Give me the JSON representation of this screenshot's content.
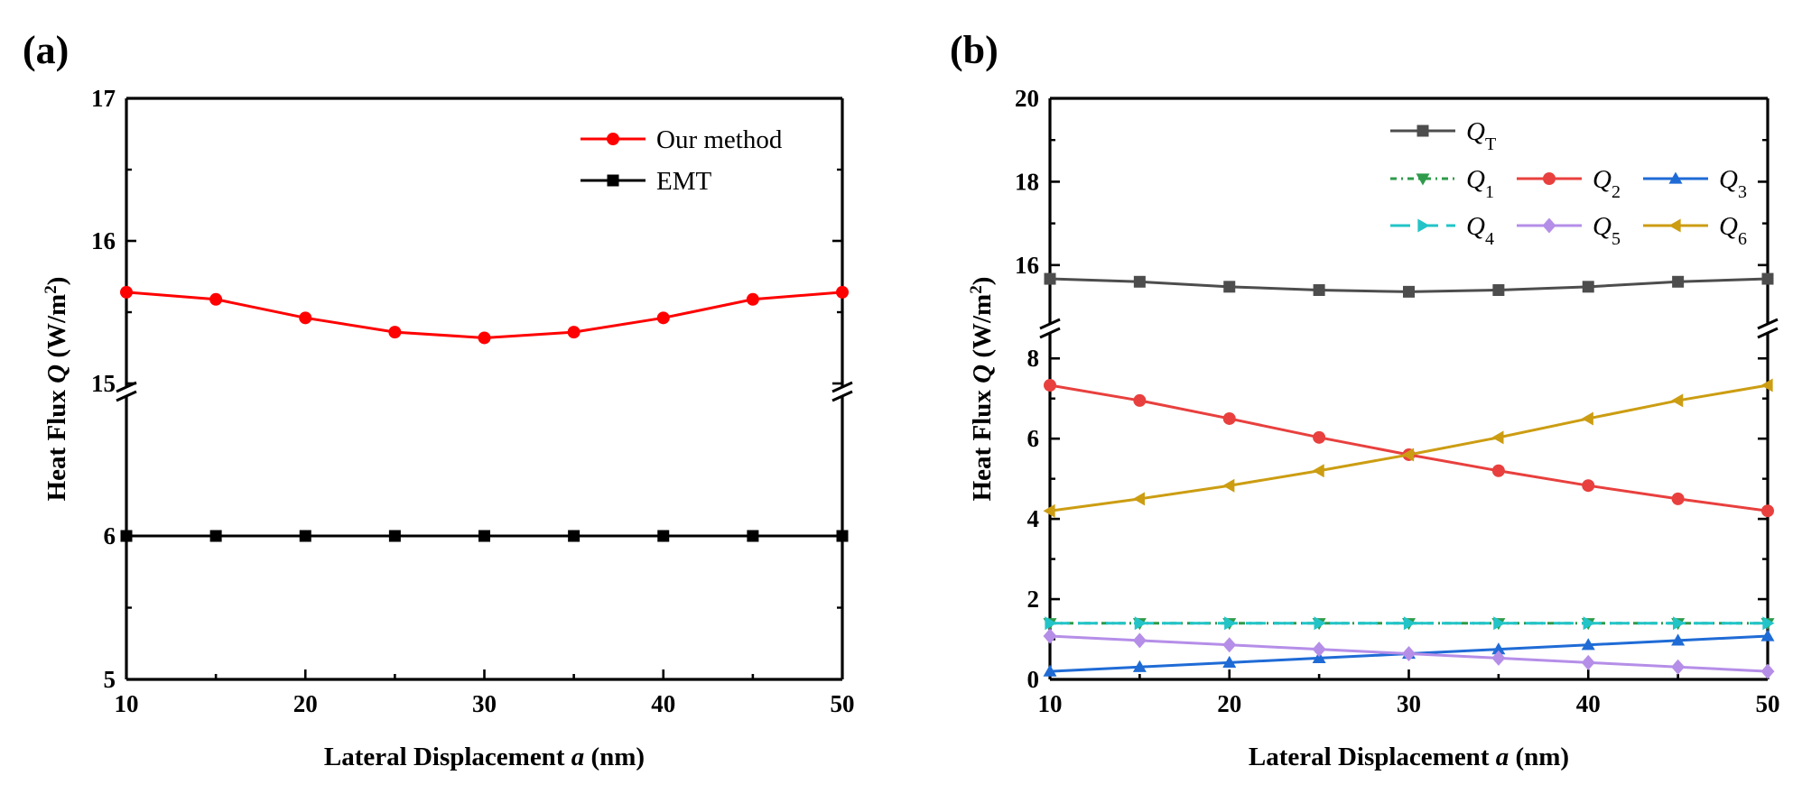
{
  "figure": {
    "panels": [
      "(a)",
      "(b)"
    ]
  },
  "chart_data": [
    {
      "id": "a",
      "type": "line",
      "panel_label": "(a)",
      "xlabel": "Lateral Displacement",
      "xlabel_var": "a",
      "xlabel_unit": "(nm)",
      "ylabel": "Heat Flux",
      "ylabel_var": "Q",
      "ylabel_unit": "(W/m",
      "ylabel_unit_sup": "2",
      "ylabel_unit_close": ")",
      "xlim": [
        10,
        50
      ],
      "x_ticks": [
        "10",
        "20",
        "30",
        "40",
        "50"
      ],
      "ylim_lower": [
        5,
        6.95
      ],
      "ylim_upper": [
        15,
        17
      ],
      "y_ticks_lower": [
        "5",
        "6"
      ],
      "y_ticks_upper": [
        "15",
        "16",
        "17"
      ],
      "axis_break": true,
      "grid": false,
      "legend_position": "top-right",
      "x": [
        10,
        15,
        20,
        25,
        30,
        35,
        40,
        45,
        50
      ],
      "series": [
        {
          "name": "Our method",
          "color": "#ff0000",
          "marker": "circle",
          "values": [
            15.64,
            15.59,
            15.46,
            15.36,
            15.32,
            15.36,
            15.46,
            15.59,
            15.64
          ]
        },
        {
          "name": "EMT",
          "color": "#000000",
          "marker": "square",
          "values": [
            6.0,
            6.0,
            6.0,
            6.0,
            6.0,
            6.0,
            6.0,
            6.0,
            6.0
          ]
        }
      ]
    },
    {
      "id": "b",
      "type": "line",
      "panel_label": "(b)",
      "xlabel": "Lateral Displacement",
      "xlabel_var": "a",
      "xlabel_unit": "(nm)",
      "ylabel": "Heat Flux",
      "ylabel_var": "Q",
      "ylabel_unit": "(W/m",
      "ylabel_unit_sup": "2",
      "ylabel_unit_close": ")",
      "xlim": [
        10,
        50
      ],
      "x_ticks": [
        "10",
        "20",
        "30",
        "40",
        "50"
      ],
      "ylim_lower": [
        0,
        8.5
      ],
      "ylim_upper": [
        15,
        20
      ],
      "y_ticks_lower": [
        "0",
        "2",
        "4",
        "6",
        "8"
      ],
      "y_ticks_upper": [
        "16",
        "18",
        "20"
      ],
      "axis_break": true,
      "grid": false,
      "legend_position": "top",
      "x": [
        10,
        15,
        20,
        25,
        30,
        35,
        40,
        45,
        50
      ],
      "series": [
        {
          "name": "Q",
          "sub": "T",
          "color": "#4d4d4d",
          "marker": "square",
          "dash": "solid",
          "values": [
            15.67,
            15.6,
            15.48,
            15.4,
            15.36,
            15.4,
            15.48,
            15.6,
            15.67
          ]
        },
        {
          "name": "Q",
          "sub": "1",
          "color": "#2e9b4a",
          "marker": "triangle-down",
          "dash": "dashdot",
          "values": [
            1.4,
            1.4,
            1.4,
            1.4,
            1.4,
            1.4,
            1.4,
            1.4,
            1.4
          ]
        },
        {
          "name": "Q",
          "sub": "2",
          "color": "#e8403e",
          "marker": "circle",
          "dash": "solid",
          "values": [
            7.33,
            6.95,
            6.5,
            6.03,
            5.6,
            5.2,
            4.83,
            4.5,
            4.2
          ]
        },
        {
          "name": "Q",
          "sub": "3",
          "color": "#1f6bd6",
          "marker": "triangle-up",
          "dash": "solid",
          "values": [
            0.2,
            0.31,
            0.42,
            0.53,
            0.64,
            0.75,
            0.86,
            0.97,
            1.08
          ]
        },
        {
          "name": "Q",
          "sub": "4",
          "color": "#22c4c8",
          "marker": "triangle-right",
          "dash": "dashed",
          "values": [
            1.4,
            1.4,
            1.4,
            1.4,
            1.4,
            1.4,
            1.4,
            1.4,
            1.4
          ]
        },
        {
          "name": "Q",
          "sub": "5",
          "color": "#b58ee8",
          "marker": "diamond",
          "dash": "solid",
          "values": [
            1.08,
            0.97,
            0.86,
            0.75,
            0.64,
            0.53,
            0.42,
            0.31,
            0.2
          ]
        },
        {
          "name": "Q",
          "sub": "6",
          "color": "#cc9d12",
          "marker": "triangle-left",
          "dash": "solid",
          "values": [
            4.2,
            4.5,
            4.83,
            5.2,
            5.6,
            6.03,
            6.5,
            6.95,
            7.33
          ]
        }
      ]
    }
  ]
}
